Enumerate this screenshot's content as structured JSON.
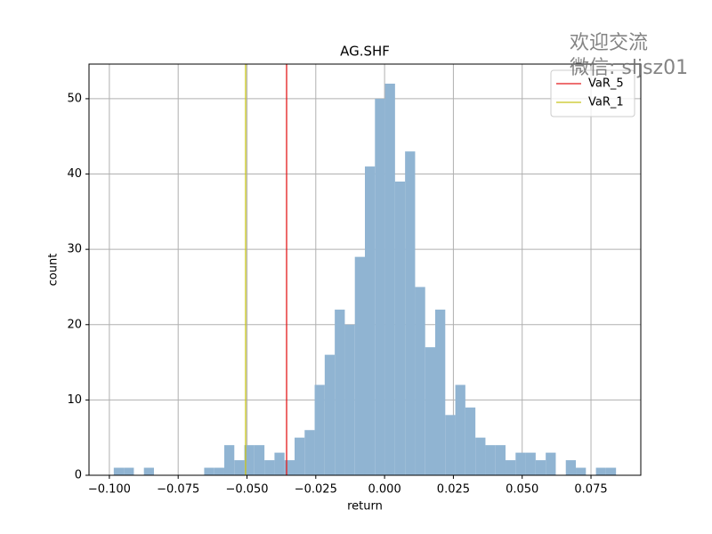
{
  "chart_data": {
    "type": "histogram",
    "title": "AG.SHF",
    "xlabel": "return",
    "ylabel": "count",
    "bins": [
      -0.0984,
      -0.09475,
      -0.0911,
      -0.08745,
      -0.0838,
      -0.08015,
      -0.0765,
      -0.07285,
      -0.0692,
      -0.06555,
      -0.0619,
      -0.05825,
      -0.0546,
      -0.05095,
      -0.0473,
      -0.04365,
      -0.04,
      -0.03635,
      -0.0327,
      -0.02905,
      -0.0254,
      -0.02175,
      -0.0181,
      -0.01445,
      -0.0108,
      -0.00715,
      -0.0035,
      0.00015,
      0.0038,
      0.00745,
      0.0111,
      0.01475,
      0.0184,
      0.02205,
      0.0257,
      0.02935,
      0.033,
      0.03665,
      0.0403,
      0.04395,
      0.0476,
      0.05125,
      0.0549,
      0.05855,
      0.0622,
      0.06585,
      0.0695,
      0.07315,
      0.0768,
      0.08045,
      0.0841
    ],
    "counts": [
      1,
      1,
      0,
      1,
      0,
      0,
      0,
      0,
      0,
      1,
      1,
      4,
      2,
      4,
      4,
      2,
      3,
      2,
      5,
      6,
      12,
      16,
      22,
      20,
      29,
      41,
      50,
      52,
      39,
      43,
      25,
      17,
      22,
      8,
      12,
      9,
      5,
      4,
      4,
      2,
      3,
      3,
      2,
      3,
      0,
      2,
      1,
      0,
      1,
      1
    ],
    "color": "#90b4d2",
    "xlim": [
      -0.1074,
      0.0931
    ],
    "ylim": [
      0,
      54.6
    ],
    "xticks": [
      {
        "value": -0.1,
        "label": "−0.100"
      },
      {
        "value": -0.075,
        "label": "−0.075"
      },
      {
        "value": -0.05,
        "label": "−0.050"
      },
      {
        "value": -0.025,
        "label": "−0.025"
      },
      {
        "value": 0,
        "label": "0.000"
      },
      {
        "value": 0.025,
        "label": "0.025"
      },
      {
        "value": 0.05,
        "label": "0.050"
      },
      {
        "value": 0.075,
        "label": "0.075"
      }
    ],
    "yticks": [
      0,
      10,
      20,
      30,
      40,
      50
    ],
    "grid": true,
    "vlines": [
      {
        "name": "VaR_5",
        "color": "#e31a1c",
        "x": -0.0356
      },
      {
        "name": "VaR_1",
        "color": "#c8c41a",
        "x": -0.0505
      }
    ],
    "legend": "upper right"
  },
  "watermark": [
    "欢迎交流",
    "微信: sljsz01"
  ]
}
